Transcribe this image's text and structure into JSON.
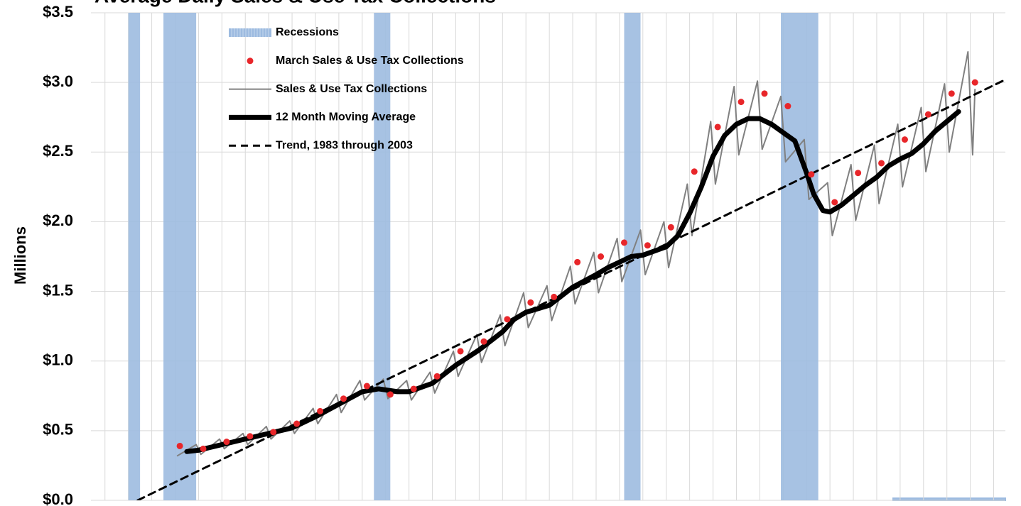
{
  "chart_data": {
    "type": "line",
    "title": "Average Daily Sales & Use Tax Collections",
    "y_label": "Millions",
    "xlim": [
      1978.4,
      2017.5
    ],
    "xticks": [
      1979,
      1980,
      1981,
      1982,
      1983,
      1984,
      1985,
      1986,
      1987,
      1988,
      1989,
      1990,
      1991,
      1992,
      1993,
      1994,
      1995,
      1996,
      1997,
      1998,
      1999,
      2000,
      2001,
      2002,
      2003,
      2004,
      2005,
      2006,
      2007,
      2008,
      2009,
      2010,
      2011,
      2012,
      2013,
      2014,
      2015,
      2016,
      2017
    ],
    "ylim": [
      0,
      3.5
    ],
    "yticks": [
      {
        "value": 0,
        "label": "$0.0"
      },
      {
        "value": 0.5,
        "label": "$0.5"
      },
      {
        "value": 1,
        "label": "$1.0"
      },
      {
        "value": 1.5,
        "label": "$1.5"
      },
      {
        "value": 2,
        "label": "$2.0"
      },
      {
        "value": 2.5,
        "label": "$2.5"
      },
      {
        "value": 3,
        "label": "$3.0"
      },
      {
        "value": 3.5,
        "label": "$3.5"
      }
    ],
    "grid": true,
    "legend": "top-left",
    "recessions": {
      "name": "Recessions",
      "color": "#9dbbe0",
      "periods": [
        [
          1980.0,
          1980.5
        ],
        [
          1981.5,
          1982.9
        ],
        [
          1990.5,
          1991.2
        ],
        [
          2001.2,
          2001.9
        ],
        [
          2007.9,
          2009.5
        ]
      ]
    },
    "series": [
      {
        "name": "March Sales & Use Tax Collections",
        "color": "#e8262a",
        "mark": "dot",
        "x": [
          1982.2,
          1983.2,
          1984.2,
          1985.2,
          1986.2,
          1987.2,
          1988.2,
          1989.2,
          1990.2,
          1991.2,
          1992.2,
          1993.2,
          1994.2,
          1995.2,
          1996.2,
          1997.2,
          1998.2,
          1999.2,
          2000.2,
          2001.2,
          2002.2,
          2003.2,
          2004.2,
          2005.2,
          2006.2,
          2007.2,
          2008.2,
          2009.2,
          2010.2,
          2011.2,
          2012.2,
          2013.2,
          2014.2,
          2015.2,
          2016.2
        ],
        "values": [
          0.39,
          0.37,
          0.42,
          0.46,
          0.49,
          0.55,
          0.64,
          0.73,
          0.82,
          0.76,
          0.8,
          0.89,
          1.07,
          1.14,
          1.3,
          1.42,
          1.46,
          1.71,
          1.75,
          1.85,
          1.83,
          1.96,
          2.36,
          2.68,
          2.86,
          2.92,
          2.83,
          2.34,
          2.14,
          2.35,
          2.42,
          2.59,
          2.77,
          2.92,
          3.0
        ]
      },
      {
        "name": "Sales & Use Tax Collections",
        "color": "#808080",
        "mark": "line",
        "width": 2,
        "dash": false,
        "x": [
          1982.1,
          1982.9,
          1983.1,
          1983.9,
          1984.1,
          1984.9,
          1985.1,
          1985.9,
          1986.1,
          1986.9,
          1987.1,
          1987.9,
          1988.1,
          1988.9,
          1989.1,
          1989.9,
          1990.1,
          1990.9,
          1991.1,
          1991.9,
          1992.1,
          1992.9,
          1993.1,
          1993.9,
          1994.1,
          1994.9,
          1995.1,
          1995.9,
          1996.1,
          1996.9,
          1997.1,
          1997.9,
          1998.1,
          1998.9,
          1999.1,
          1999.9,
          2000.1,
          2000.9,
          2001.1,
          2001.9,
          2002.1,
          2002.9,
          2003.1,
          2003.9,
          2004.1,
          2004.9,
          2005.1,
          2005.9,
          2006.1,
          2006.9,
          2007.1,
          2007.9,
          2008.1,
          2008.9,
          2009.1,
          2009.9,
          2010.1,
          2010.9,
          2011.1,
          2011.9,
          2012.1,
          2012.9,
          2013.1,
          2013.9,
          2014.1,
          2014.9,
          2015.1,
          2015.9,
          2016.1,
          2016.2
        ],
        "values": [
          0.32,
          0.4,
          0.33,
          0.44,
          0.37,
          0.48,
          0.4,
          0.53,
          0.44,
          0.57,
          0.48,
          0.66,
          0.55,
          0.76,
          0.63,
          0.86,
          0.72,
          0.87,
          0.73,
          0.86,
          0.72,
          0.92,
          0.77,
          1.07,
          0.89,
          1.19,
          0.99,
          1.33,
          1.11,
          1.49,
          1.24,
          1.54,
          1.29,
          1.68,
          1.41,
          1.78,
          1.49,
          1.88,
          1.57,
          1.94,
          1.62,
          2.0,
          1.67,
          2.27,
          1.9,
          2.72,
          2.27,
          2.97,
          2.48,
          3.01,
          2.52,
          2.9,
          2.43,
          2.59,
          2.16,
          2.28,
          1.9,
          2.41,
          2.01,
          2.55,
          2.13,
          2.7,
          2.25,
          2.82,
          2.36,
          2.99,
          2.5,
          3.22,
          2.48,
          2.95
        ]
      },
      {
        "name": "12 Month Moving Average",
        "color": "#000000",
        "mark": "line",
        "width": 7,
        "dash": false,
        "x": [
          1982.5,
          1983,
          1984,
          1985,
          1986,
          1987,
          1988,
          1989,
          1990,
          1990.7,
          1991.5,
          1992,
          1993,
          1994,
          1995,
          1996,
          1996.5,
          1997,
          1998,
          1999,
          2000,
          2000.5,
          2001,
          2001.5,
          2002,
          2003,
          2003.5,
          2004,
          2004.5,
          2005,
          2005.5,
          2006,
          2006.5,
          2007,
          2007.5,
          2008,
          2008.5,
          2009,
          2009.3,
          2009.7,
          2010,
          2010.5,
          2011,
          2011.5,
          2012,
          2012.5,
          2013,
          2013.5,
          2014,
          2014.5,
          2015,
          2015.5
        ],
        "values": [
          0.35,
          0.36,
          0.4,
          0.44,
          0.48,
          0.52,
          0.6,
          0.69,
          0.78,
          0.8,
          0.78,
          0.78,
          0.84,
          0.97,
          1.08,
          1.21,
          1.3,
          1.35,
          1.4,
          1.53,
          1.62,
          1.67,
          1.71,
          1.75,
          1.76,
          1.82,
          1.9,
          2.06,
          2.25,
          2.47,
          2.62,
          2.7,
          2.74,
          2.74,
          2.7,
          2.64,
          2.58,
          2.35,
          2.2,
          2.08,
          2.07,
          2.12,
          2.19,
          2.26,
          2.32,
          2.4,
          2.45,
          2.49,
          2.56,
          2.65,
          2.72,
          2.79
        ]
      },
      {
        "name": "Trend, 1983 through 2003",
        "color": "#000000",
        "mark": "line",
        "width": 3,
        "dash": true,
        "x": [
          1980.4,
          2017.5
        ],
        "values": [
          0,
          3.02
        ]
      }
    ]
  }
}
